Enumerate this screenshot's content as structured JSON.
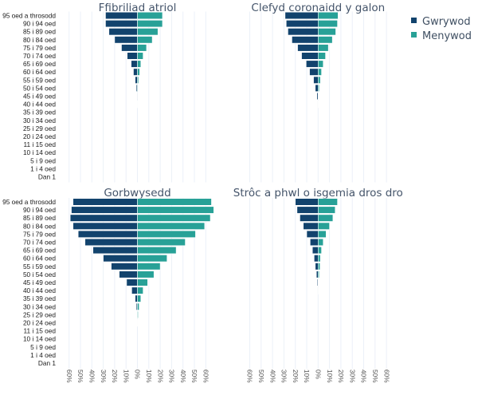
{
  "colors": {
    "male": "#12436d",
    "female": "#28a197",
    "grid": "#ebf0f8",
    "bar_edge": "#ffffff"
  },
  "legend": {
    "position": "top-right",
    "items": [
      {
        "label": "Gwrywod",
        "series": "male"
      },
      {
        "label": "Menywod",
        "series": "female"
      }
    ]
  },
  "chart_data": [
    {
      "type": "bar",
      "orientation": "horizontal-pyramid",
      "title": "Ffibriliad atriol",
      "categories": [
        "95 oed a throsodd",
        "90 i 94 oed",
        "85 i 89 oed",
        "80 i 84 oed",
        "75 i 79 oed",
        "70 i 74 oed",
        "65 i 69 oed",
        "60 i 64 oed",
        "55 i 59 oed",
        "50 i 54 oed",
        "45 i 49 oed",
        "40 i 44 oed",
        "35 i 39 oed",
        "30 i 34 oed",
        "25 i 29 oed",
        "20 i 24 oed",
        "11 i 15 oed",
        "10 i 14 oed",
        "5 i 9 oed",
        "1 i 4 oed",
        "Dan 1"
      ],
      "series": [
        {
          "name": "Gwrywod",
          "values": [
            28,
            28,
            25,
            20,
            14,
            9,
            5.5,
            3.5,
            2,
            1,
            0.5,
            0.2,
            0,
            0,
            0,
            0,
            0,
            0,
            0,
            0,
            0
          ]
        },
        {
          "name": "Menywod",
          "values": [
            22,
            22,
            18,
            13,
            8,
            5,
            3,
            2,
            1,
            0.5,
            0.3,
            0.1,
            0,
            0,
            0,
            0,
            0,
            0,
            0,
            0,
            0
          ]
        }
      ],
      "xticks": [
        "60%",
        "50%",
        "40%",
        "30%",
        "20%",
        "10%",
        "0%",
        "10%",
        "20%",
        "30%",
        "40%",
        "50%",
        "60%"
      ],
      "xlim": [
        -60,
        60
      ],
      "xlabel": "",
      "ylabel": "",
      "grid": true,
      "show_yticks": true,
      "show_xticks": false
    },
    {
      "type": "bar",
      "orientation": "horizontal-pyramid",
      "title": "Clefyd coronaidd y galon",
      "categories": [
        "95 oed a throsodd",
        "90 i 94 oed",
        "85 i 89 oed",
        "80 i 84 oed",
        "75 i 79 oed",
        "70 i 74 oed",
        "65 i 69 oed",
        "60 i 64 oed",
        "55 i 59 oed",
        "50 i 54 oed",
        "45 i 49 oed",
        "40 i 44 oed",
        "35 i 39 oed",
        "30 i 34 oed",
        "25 i 29 oed",
        "20 i 24 oed",
        "11 i 15 oed",
        "10 i 14 oed",
        "5 i 9 oed",
        "1 i 4 oed",
        "Dan 1"
      ],
      "series": [
        {
          "name": "Gwrywod",
          "values": [
            29,
            28,
            26.5,
            23,
            18,
            14.5,
            10.5,
            7.5,
            4,
            2.5,
            1,
            0.3,
            0,
            0,
            0,
            0,
            0,
            0,
            0,
            0,
            0
          ]
        },
        {
          "name": "Menywod",
          "values": [
            17.5,
            17,
            15.5,
            12.5,
            9,
            6.5,
            4.5,
            3,
            2,
            1,
            0.3,
            0.1,
            0,
            0,
            0,
            0,
            0,
            0,
            0,
            0,
            0
          ]
        }
      ],
      "xticks": [
        "60%",
        "50%",
        "40%",
        "30%",
        "20%",
        "10%",
        "0%",
        "10%",
        "20%",
        "30%",
        "40%",
        "50%",
        "60%"
      ],
      "xlim": [
        -60,
        60
      ],
      "xlabel": "",
      "ylabel": "",
      "grid": true,
      "show_yticks": false,
      "show_xticks": false
    },
    {
      "type": "bar",
      "orientation": "horizontal-pyramid",
      "title": "Gorbwysedd",
      "categories": [
        "95 oed a throsodd",
        "90 i 94 oed",
        "85 i 89 oed",
        "80 i 84 oed",
        "75 i 79 oed",
        "70 i 74 oed",
        "65 i 69 oed",
        "60 i 64 oed",
        "55 i 59 oed",
        "50 i 54 oed",
        "45 i 49 oed",
        "40 i 44 oed",
        "35 i 39 oed",
        "30 i 34 oed",
        "25 i 29 oed",
        "20 i 24 oed",
        "11 i 15 oed",
        "10 i 14 oed",
        "5 i 9 oed",
        "1 i 4 oed",
        "Dan 1"
      ],
      "series": [
        {
          "name": "Gwrywod",
          "values": [
            56.5,
            58,
            59,
            56.5,
            52,
            46,
            39,
            30,
            23,
            16,
            9.5,
            5,
            2,
            1,
            0.3,
            0.1,
            0,
            0,
            0,
            0,
            0
          ]
        },
        {
          "name": "Menywod",
          "values": [
            65,
            67,
            64,
            59,
            51,
            42,
            34,
            26,
            20,
            14.5,
            9,
            5,
            3,
            1.5,
            0.7,
            0.2,
            0,
            0,
            0,
            0,
            0
          ]
        }
      ],
      "xticks": [
        "60%",
        "50%",
        "40%",
        "30%",
        "20%",
        "10%",
        "0%",
        "10%",
        "20%",
        "30%",
        "40%",
        "50%",
        "60%"
      ],
      "xlim": [
        -60,
        60
      ],
      "xlabel": "",
      "ylabel": "",
      "grid": true,
      "show_yticks": true,
      "show_xticks": true
    },
    {
      "type": "bar",
      "orientation": "horizontal-pyramid",
      "title": "Strôc a phwl o isgemia dros dro",
      "categories": [
        "95 oed a throsodd",
        "90 i 94 oed",
        "85 i 89 oed",
        "80 i 84 oed",
        "75 i 79 oed",
        "70 i 74 oed",
        "65 i 69 oed",
        "60 i 64 oed",
        "55 i 59 oed",
        "50 i 54 oed",
        "45 i 49 oed",
        "40 i 44 oed",
        "35 i 39 oed",
        "30 i 34 oed",
        "25 i 29 oed",
        "20 i 24 oed",
        "11 i 15 oed",
        "10 i 14 oed",
        "5 i 9 oed",
        "1 i 4 oed",
        "Dan 1"
      ],
      "series": [
        {
          "name": "Gwrywod",
          "values": [
            20,
            18.5,
            16,
            13,
            10,
            7,
            5,
            3.5,
            2.5,
            1.5,
            0.7,
            0.3,
            0,
            0,
            0,
            0,
            0,
            0,
            0,
            0,
            0
          ]
        },
        {
          "name": "Menywod",
          "values": [
            17,
            15,
            13,
            10,
            7,
            4.5,
            3,
            2,
            1.7,
            1,
            0.4,
            0.2,
            0,
            0,
            0,
            0,
            0,
            0,
            0,
            0,
            0
          ]
        }
      ],
      "xticks": [
        "60%",
        "50%",
        "40%",
        "30%",
        "20%",
        "10%",
        "0%",
        "10%",
        "20%",
        "30%",
        "40%",
        "50%",
        "60%"
      ],
      "xlim": [
        -60,
        60
      ],
      "xlabel": "",
      "ylabel": "",
      "grid": true,
      "show_yticks": false,
      "show_xticks": true
    }
  ]
}
